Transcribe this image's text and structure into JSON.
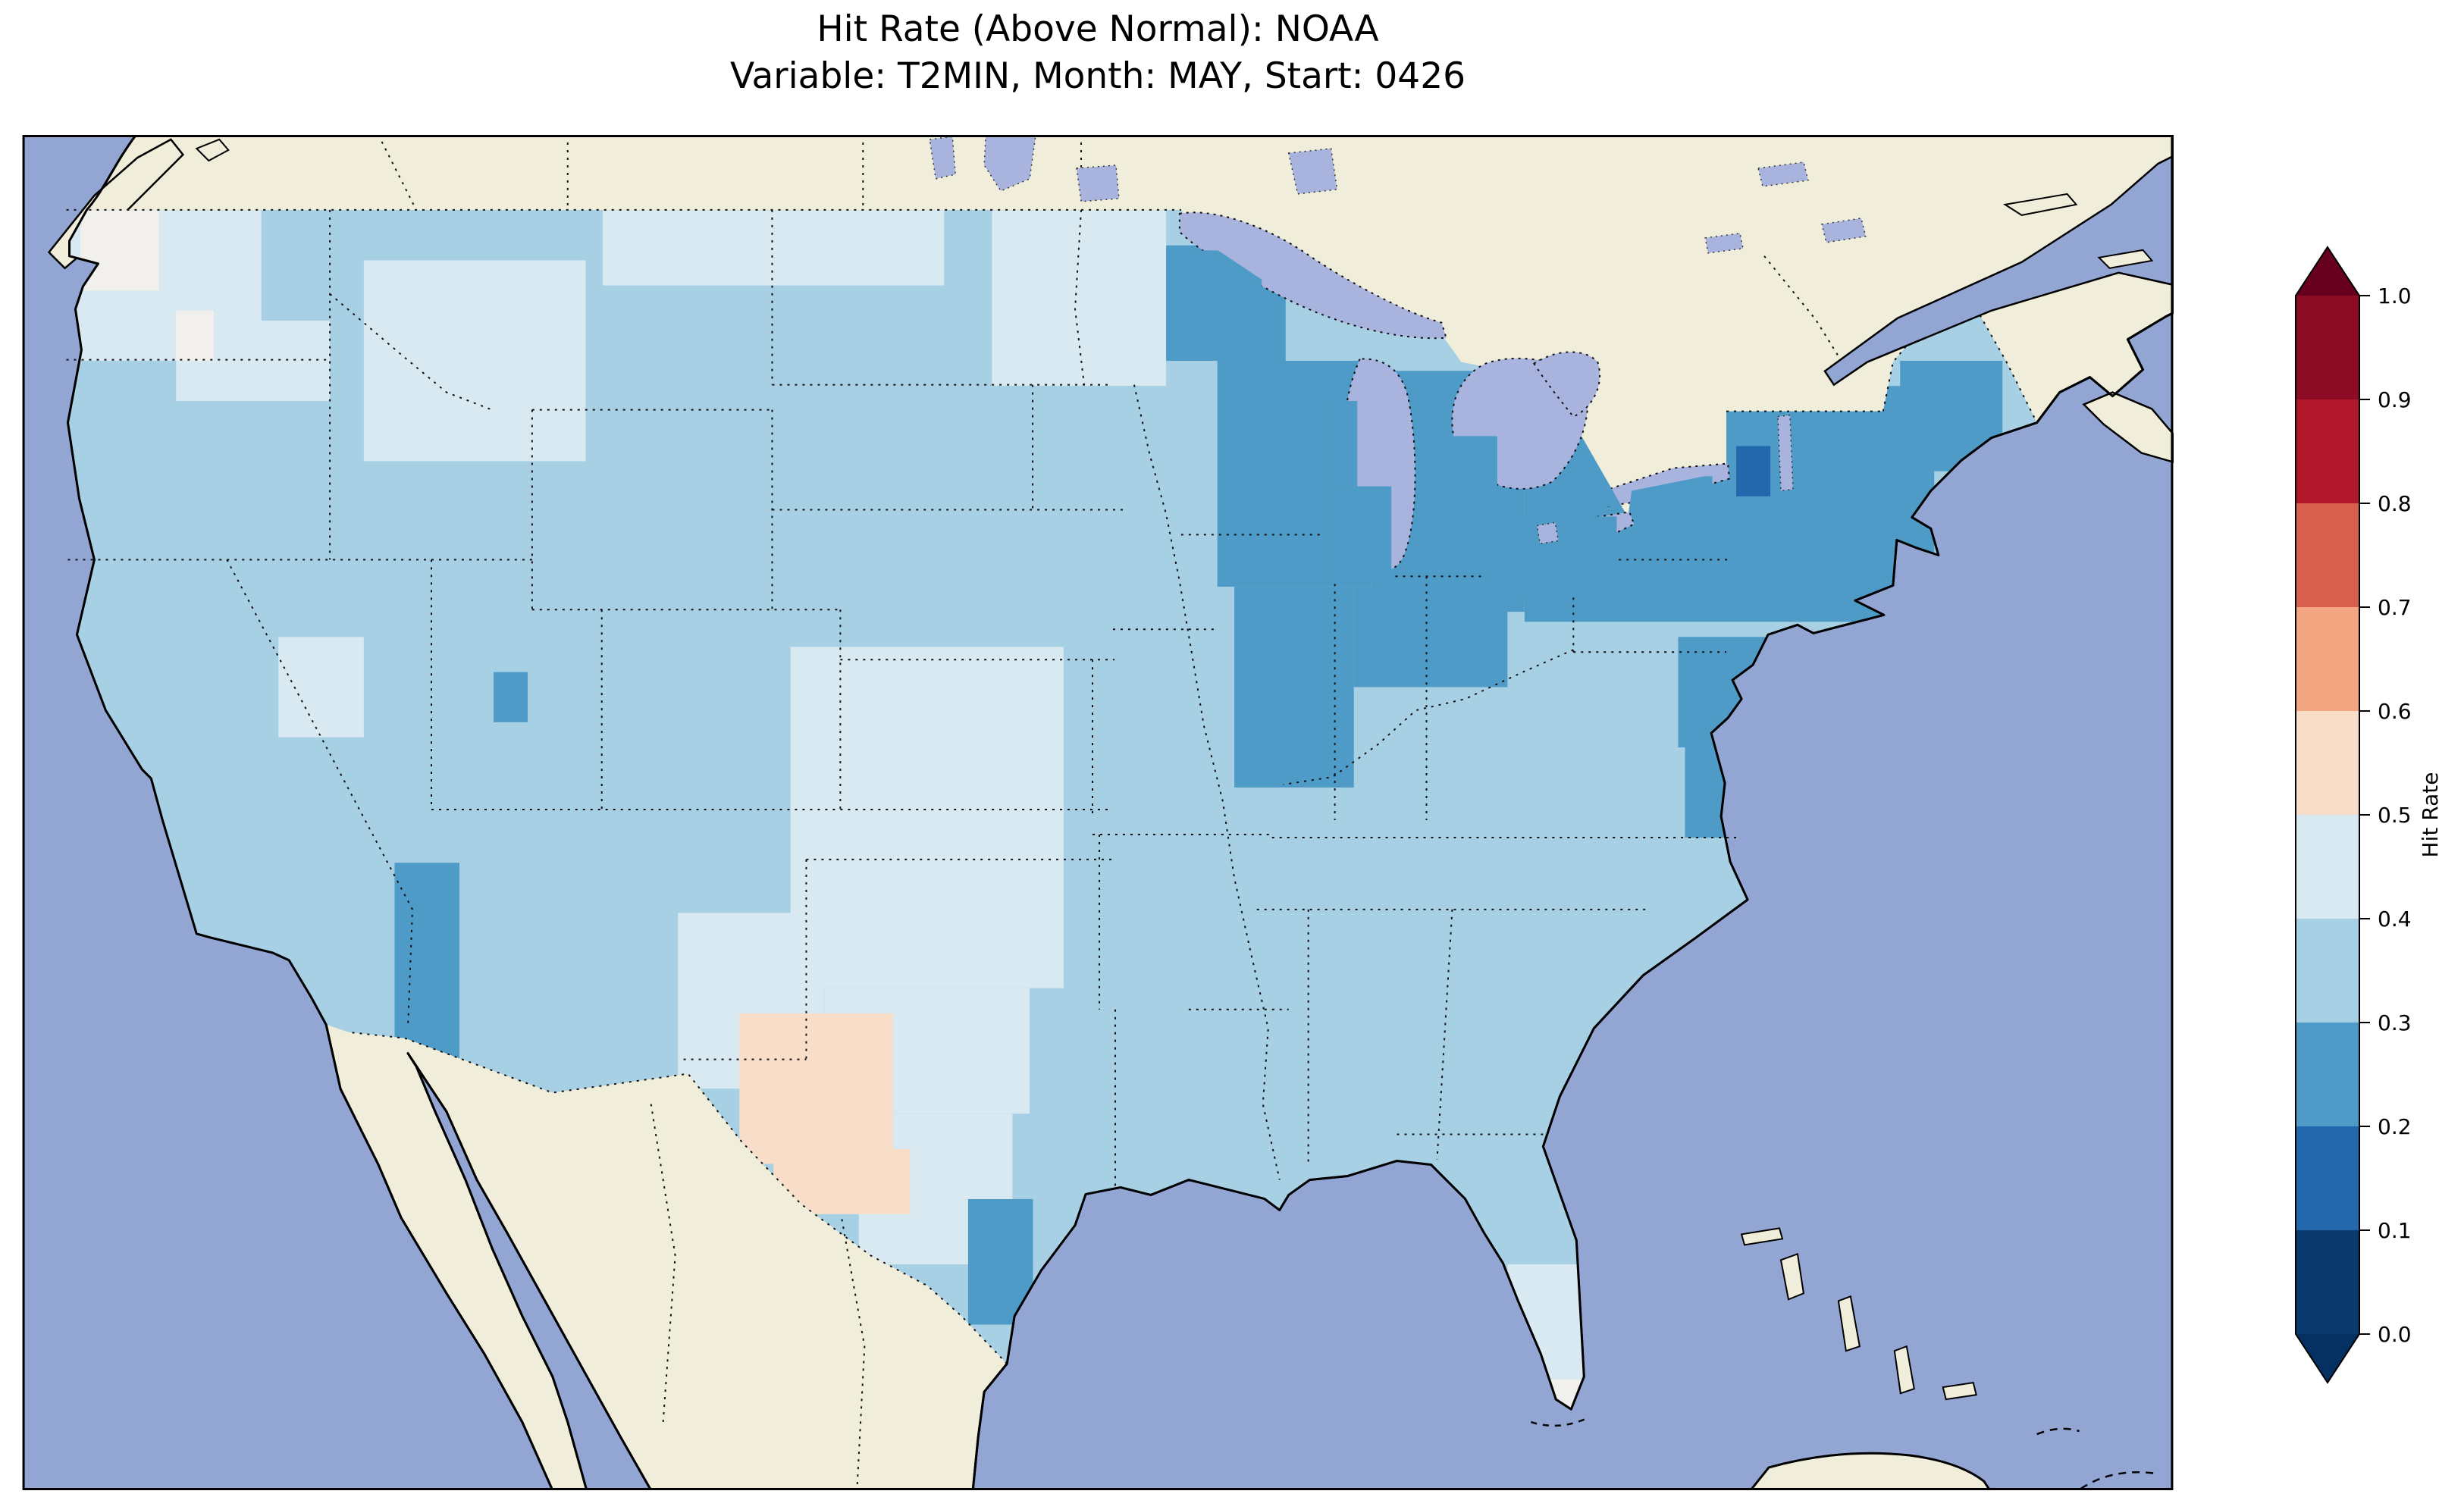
{
  "title": {
    "line1": "Hit Rate (Above Normal): NOAA",
    "line2": "Variable: T2MIN, Month: MAY, Start: 0426"
  },
  "colorbar": {
    "label": "Hit Rate",
    "tick_labels": [
      "0.0",
      "0.1",
      "0.2",
      "0.3",
      "0.4",
      "0.5",
      "0.6",
      "0.7",
      "0.8",
      "0.9",
      "1.0"
    ],
    "extend": "both",
    "bin_colors_low_to_high": [
      "#0a3a6e",
      "#2368ac",
      "#4f9bc7",
      "#a7d0e4",
      "#d9e9f2",
      "#f8ddc9",
      "#f4a582",
      "#d6604d",
      "#b2182b",
      "#8c0c25"
    ],
    "extend_low_color": "#053061",
    "extend_high_color": "#67001f"
  },
  "map_style": {
    "ocean_color": "#92a5d3",
    "land_color": "#f0eeda",
    "lake_color": "#a9b4de",
    "coastline_color": "#000000",
    "border_style": "dotted"
  },
  "chart_data": {
    "type": "heatmap",
    "title": "Hit Rate (Above Normal): NOAA",
    "subtitle": "Variable: T2MIN, Month: MAY, Start: 0426",
    "source": "NOAA",
    "category": "Above Normal",
    "variable": "T2MIN",
    "month": "MAY",
    "start": "0426",
    "colorbar_label": "Hit Rate",
    "value_range": [
      0.0,
      1.0
    ],
    "map_extent": {
      "lon": [
        -126,
        -63
      ],
      "lat": [
        23.5,
        50.5
      ]
    },
    "base_bin": "0.3-0.4",
    "bins": {
      "0.0-0.1": "#0a3a6e",
      "0.1-0.2": "#2368ac",
      "0.2-0.3": "#4f9bc7",
      "0.3-0.4": "#a7d0e4",
      "0.4-0.5": "#d9e9f2",
      "0.5-0.6": "#f8ddc9",
      "0.6-0.7": "#f4a582",
      "0.7-0.8": "#d6604d",
      "0.8-0.9": "#b2182b",
      "0.9-1.0": "#8c0c25"
    },
    "regions": [
      {
        "name": "pacific-northwest-pale",
        "value": "0.4-0.5",
        "rects": [
          [
            -124.6,
            -119,
            46,
            49
          ],
          [
            -121.5,
            -117,
            45.2,
            46.8
          ]
        ]
      },
      {
        "name": "northern-rockies-pale",
        "value": "0.4-0.5",
        "rects": [
          [
            -116,
            -109.5,
            44,
            48
          ]
        ]
      },
      {
        "name": "northern-plains-top-pale",
        "value": "0.4-0.5",
        "rects": [
          [
            -109,
            -99,
            47.5,
            49
          ]
        ]
      },
      {
        "name": "minnesota-pale",
        "value": "0.4-0.5",
        "rects": [
          [
            -97.6,
            -92.5,
            45.5,
            49
          ]
        ]
      },
      {
        "name": "central-plains-pale",
        "value": "0.4-0.5",
        "rects": [
          [
            -103.5,
            -95.5,
            33.5,
            40.3
          ],
          [
            -102.5,
            -96.5,
            31,
            33.5
          ],
          [
            -101.5,
            -97,
            28,
            31
          ]
        ]
      },
      {
        "name": "southern-new-mexico-pale",
        "value": "0.4-0.5",
        "rects": [
          [
            -106.8,
            -102.5,
            31.5,
            35
          ]
        ]
      },
      {
        "name": "south-florida-pale",
        "value": "0.4-0.5",
        "rects": [
          [
            -82.5,
            -80.3,
            25,
            28
          ]
        ]
      },
      {
        "name": "central-nevada-pale",
        "value": "0.4-0.5",
        "rects": [
          [
            -118.5,
            -116,
            38.5,
            40.5
          ]
        ]
      },
      {
        "name": "northwest-washington-white-cells",
        "value": "0.5-0.6",
        "color": "#f1f0ed",
        "rects": [
          [
            -124.3,
            -122,
            47.4,
            49
          ],
          [
            -121.5,
            -120.4,
            46,
            47
          ]
        ]
      },
      {
        "name": "miami-white-cells",
        "value": "0.5-0.6",
        "color": "#f1f0ed",
        "rects": [
          [
            -81.3,
            -80.2,
            25.1,
            25.7
          ]
        ]
      },
      {
        "name": "west-texas-warm",
        "value": "0.5-0.6",
        "rects": [
          [
            -105,
            -100.5,
            30,
            33
          ],
          [
            -104,
            -100,
            29,
            30.3
          ]
        ]
      },
      {
        "name": "upper-midwest-northeast-dark",
        "value": "0.2-0.3",
        "rects": [
          [
            -92.5,
            -89,
            46,
            48.3
          ],
          [
            -91,
            -86.5,
            41.5,
            46
          ],
          [
            -86.5,
            -82,
            41,
            45.8
          ],
          [
            -90.5,
            -87,
            37.5,
            41.5
          ],
          [
            -87,
            -82.5,
            39.5,
            41.5
          ],
          [
            -82,
            -70,
            40.8,
            45.5
          ],
          [
            -71,
            -68,
            43.8,
            46
          ],
          [
            -77.5,
            -73.5,
            38.3,
            40.5
          ]
        ]
      },
      {
        "name": "chesapeake-virginia-dark",
        "value": "0.2-0.3",
        "rects": [
          [
            -77.3,
            -75.3,
            36.5,
            38.3
          ]
        ]
      },
      {
        "name": "south-texas-coast-dark",
        "value": "0.2-0.3",
        "rects": [
          [
            -98.3,
            -96.4,
            26.8,
            29.3
          ]
        ]
      },
      {
        "name": "lower-colorado-river-dark",
        "value": "0.2-0.3",
        "rects": [
          [
            -115.1,
            -113.2,
            31.8,
            36
          ]
        ]
      },
      {
        "name": "central-utah-cell-dark",
        "value": "0.2-0.3",
        "rects": [
          [
            -112.2,
            -111.2,
            38.8,
            39.8
          ]
        ]
      },
      {
        "name": "adirondacks-darkest-cell",
        "value": "0.1-0.2",
        "rects": [
          [
            -75.8,
            -74.8,
            43.3,
            44.3
          ]
        ]
      }
    ],
    "lake_overlays": {
      "value": "0.2-0.3",
      "rects": [
        [
          -92.3,
          -89.7,
          46.3,
          48.2
        ],
        [
          -87.9,
          -85.9,
          41.6,
          43.5
        ],
        [
          -87.9,
          -86.9,
          43.5,
          45.2
        ],
        [
          -83.2,
          -79.3,
          41.3,
          42.9
        ],
        [
          -84.6,
          -82.8,
          43,
          44.5
        ],
        [
          -79.9,
          -76.5,
          43.1,
          43.7
        ]
      ]
    }
  }
}
